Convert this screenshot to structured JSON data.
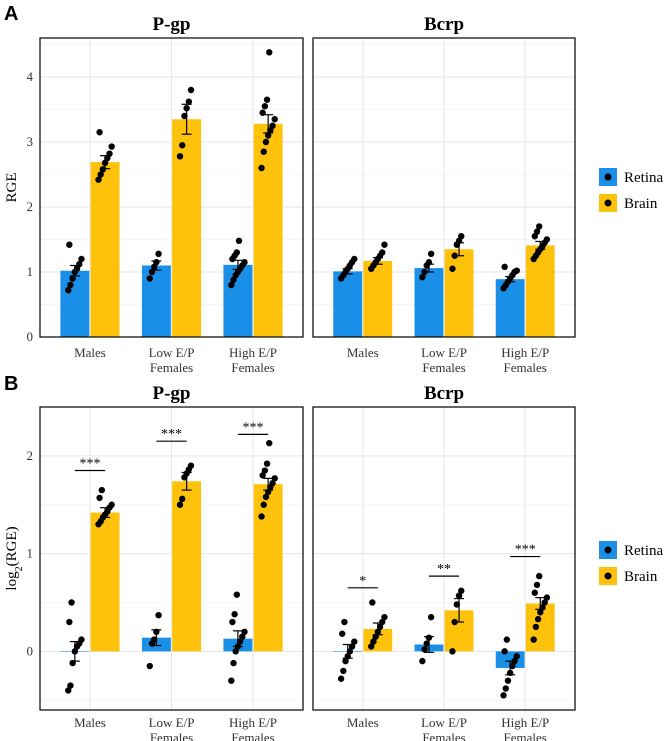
{
  "colors": {
    "retina": "#1a8fe8",
    "brain": "#ffc20a"
  },
  "chart_data": [
    {
      "type": "bar",
      "panel_label": "A",
      "ylabel": "RGE",
      "ylabel_sub": "",
      "ylabel_suffix": "",
      "ylim": [
        0,
        4.6
      ],
      "yticks": [
        0,
        1,
        2,
        3,
        4
      ],
      "categories": [
        "Males",
        "Low E/P Females",
        "High E/P Females"
      ],
      "category_lines": [
        [
          "Males"
        ],
        [
          "Low E/P",
          "Females"
        ],
        [
          "High E/P",
          "Females"
        ]
      ],
      "legend": [
        {
          "name": "Retina",
          "color": "#1a8fe8"
        },
        {
          "name": "Brain",
          "color": "#ffc20a"
        }
      ],
      "facets": [
        {
          "title": "P-gp",
          "series": [
            {
              "name": "Retina",
              "color": "#1a8fe8",
              "values": [
                1.02,
                1.1,
                1.11
              ],
              "errors": [
                0.08,
                0.07,
                0.07
              ],
              "points": [
                [
                  0.72,
                  0.8,
                  0.9,
                  1.0,
                  1.05,
                  1.12,
                  1.2,
                  1.42
                ],
                [
                  0.9,
                  1.0,
                  1.08,
                  1.15,
                  1.28
                ],
                [
                  0.8,
                  0.88,
                  0.95,
                  1.0,
                  1.05,
                  1.1,
                  1.15,
                  1.2,
                  1.25,
                  1.3,
                  1.48
                ]
              ]
            },
            {
              "name": "Brain",
              "color": "#ffc20a",
              "values": [
                2.69,
                3.35,
                3.28
              ],
              "errors": [
                0.1,
                0.23,
                0.14
              ],
              "points": [
                [
                  2.42,
                  2.5,
                  2.58,
                  2.68,
                  2.75,
                  2.82,
                  2.93,
                  3.15
                ],
                [
                  2.78,
                  2.95,
                  3.4,
                  3.52,
                  3.62,
                  3.8
                ],
                [
                  2.6,
                  2.85,
                  3.0,
                  3.1,
                  3.18,
                  3.25,
                  3.35,
                  3.45,
                  3.55,
                  3.65,
                  4.38
                ]
              ]
            }
          ],
          "significance": []
        },
        {
          "title": "Bcrp",
          "series": [
            {
              "name": "Retina",
              "color": "#1a8fe8",
              "values": [
                1.01,
                1.06,
                0.89
              ],
              "errors": [
                0.04,
                0.06,
                0.04
              ],
              "points": [
                [
                  0.9,
                  0.95,
                  1.0,
                  1.05,
                  1.1,
                  1.15,
                  1.2
                ],
                [
                  0.92,
                  1.0,
                  1.1,
                  1.15,
                  1.28
                ],
                [
                  0.75,
                  0.8,
                  0.85,
                  0.9,
                  0.95,
                  1.0,
                  1.02,
                  1.08
                ]
              ]
            },
            {
              "name": "Brain",
              "color": "#ffc20a",
              "values": [
                1.17,
                1.35,
                1.41
              ],
              "errors": [
                0.05,
                0.1,
                0.06
              ],
              "points": [
                [
                  1.05,
                  1.1,
                  1.15,
                  1.2,
                  1.25,
                  1.3,
                  1.42
                ],
                [
                  1.05,
                  1.25,
                  1.42,
                  1.48,
                  1.55
                ],
                [
                  1.2,
                  1.25,
                  1.3,
                  1.35,
                  1.4,
                  1.45,
                  1.5,
                  1.55,
                  1.62,
                  1.7
                ]
              ]
            }
          ],
          "significance": []
        }
      ]
    },
    {
      "type": "bar",
      "panel_label": "B",
      "ylabel": "log",
      "ylabel_sub": "2",
      "ylabel_suffix": "(RGE)",
      "ylim": [
        -0.6,
        2.5
      ],
      "yticks": [
        0,
        1,
        2
      ],
      "categories": [
        "Males",
        "Low E/P Females",
        "High E/P Females"
      ],
      "category_lines": [
        [
          "Males"
        ],
        [
          "Low E/P",
          "Females"
        ],
        [
          "High E/P",
          "Females"
        ]
      ],
      "legend": [
        {
          "name": "Retina",
          "color": "#1a8fe8"
        },
        {
          "name": "Brain",
          "color": "#ffc20a"
        }
      ],
      "facets": [
        {
          "title": "P-gp",
          "series": [
            {
              "name": "Retina",
              "color": "#1a8fe8",
              "values": [
                0.0,
                0.14,
                0.13
              ],
              "errors": [
                0.1,
                0.08,
                0.08
              ],
              "points": [
                [
                  -0.4,
                  -0.35,
                  -0.12,
                  0.0,
                  0.05,
                  0.08,
                  0.12,
                  0.3,
                  0.5
                ],
                [
                  -0.15,
                  0.08,
                  0.12,
                  0.2,
                  0.37
                ],
                [
                  -0.3,
                  -0.12,
                  0.0,
                  0.05,
                  0.1,
                  0.15,
                  0.2,
                  0.3,
                  0.38,
                  0.58
                ]
              ]
            },
            {
              "name": "Brain",
              "color": "#ffc20a",
              "values": [
                1.42,
                1.74,
                1.71
              ],
              "errors": [
                0.05,
                0.09,
                0.06
              ],
              "points": [
                [
                  1.3,
                  1.33,
                  1.37,
                  1.4,
                  1.43,
                  1.47,
                  1.5,
                  1.57,
                  1.65
                ],
                [
                  1.5,
                  1.56,
                  1.78,
                  1.82,
                  1.86,
                  1.9
                ],
                [
                  1.38,
                  1.5,
                  1.58,
                  1.63,
                  1.68,
                  1.72,
                  1.77,
                  1.8,
                  1.85,
                  1.92,
                  2.13
                ]
              ]
            }
          ],
          "significance": [
            {
              "group": 0,
              "label": "***",
              "y": 1.85
            },
            {
              "group": 1,
              "label": "***",
              "y": 2.15
            },
            {
              "group": 2,
              "label": "***",
              "y": 2.22
            }
          ]
        },
        {
          "title": "Bcrp",
          "series": [
            {
              "name": "Retina",
              "color": "#1a8fe8",
              "values": [
                0.0,
                0.07,
                -0.17
              ],
              "errors": [
                0.07,
                0.08,
                0.07
              ],
              "points": [
                [
                  -0.28,
                  -0.2,
                  -0.1,
                  -0.05,
                  0.0,
                  0.05,
                  0.1,
                  0.18,
                  0.3
                ],
                [
                  -0.1,
                  0.02,
                  0.08,
                  0.14,
                  0.35
                ],
                [
                  -0.45,
                  -0.38,
                  -0.3,
                  -0.22,
                  -0.15,
                  -0.1,
                  -0.05,
                  0.0,
                  0.12
                ]
              ]
            },
            {
              "name": "Brain",
              "color": "#ffc20a",
              "values": [
                0.23,
                0.42,
                0.49
              ],
              "errors": [
                0.06,
                0.12,
                0.06
              ],
              "points": [
                [
                  0.05,
                  0.1,
                  0.15,
                  0.2,
                  0.25,
                  0.3,
                  0.35,
                  0.5
                ],
                [
                  0.0,
                  0.3,
                  0.48,
                  0.57,
                  0.62
                ],
                [
                  0.12,
                  0.25,
                  0.33,
                  0.4,
                  0.45,
                  0.5,
                  0.55,
                  0.6,
                  0.68,
                  0.77
                ]
              ]
            }
          ],
          "significance": [
            {
              "group": 0,
              "label": "*",
              "y": 0.65
            },
            {
              "group": 1,
              "label": "**",
              "y": 0.77
            },
            {
              "group": 2,
              "label": "***",
              "y": 0.97
            }
          ]
        }
      ]
    }
  ]
}
